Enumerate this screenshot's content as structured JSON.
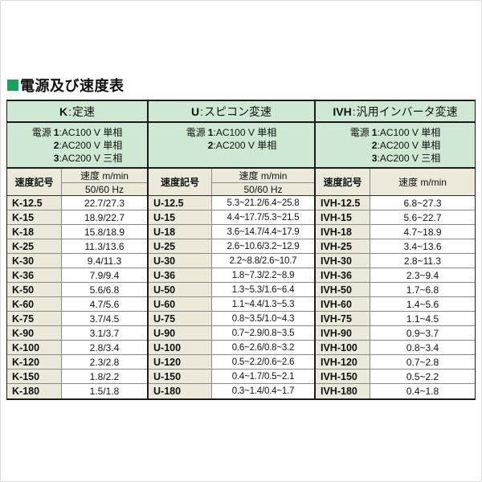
{
  "title": {
    "text": "電源及び速度表"
  },
  "colors": {
    "accent_green": "#12a45a",
    "section_green": "#cee8d4",
    "code_beige": "#ece9da"
  },
  "table": {
    "separator": ":",
    "sections": [
      {
        "id": "K",
        "name_prefix": "K",
        "name_label": "定速",
        "power_label": "電源",
        "power_options": [
          {
            "num": "1",
            "desc": "AC100 V 単相"
          },
          {
            "num": "2",
            "desc": "AC200 V 単相"
          },
          {
            "num": "3",
            "desc": "AC200 V 三相"
          }
        ],
        "code_header": "速度記号",
        "speed_header": "速度 m/min",
        "speed_subheader": "50/60 Hz",
        "rows": [
          {
            "code": "K-12.5",
            "speed": "22.7/27.3"
          },
          {
            "code": "K-15",
            "speed": "18.9/22.7"
          },
          {
            "code": "K-18",
            "speed": "15.8/18.9"
          },
          {
            "code": "K-25",
            "speed": "11.3/13.6"
          },
          {
            "code": "K-30",
            "speed": "9.4/11.3"
          },
          {
            "code": "K-36",
            "speed": "7.9/9.4"
          },
          {
            "code": "K-50",
            "speed": "5.6/6.8"
          },
          {
            "code": "K-60",
            "speed": "4.7/5.6"
          },
          {
            "code": "K-75",
            "speed": "3.7/4.5"
          },
          {
            "code": "K-90",
            "speed": "3.1/3.7"
          },
          {
            "code": "K-100",
            "speed": "2.8/3.4"
          },
          {
            "code": "K-120",
            "speed": "2.3/2.8"
          },
          {
            "code": "K-150",
            "speed": "1.8/2.2"
          },
          {
            "code": "K-180",
            "speed": "1.5/1.8"
          }
        ]
      },
      {
        "id": "U",
        "name_prefix": "U",
        "name_label": "スピコン変速",
        "power_label": "電源",
        "power_options": [
          {
            "num": "1",
            "desc": "AC100 V 単相"
          },
          {
            "num": "2",
            "desc": "AC200 V 単相"
          }
        ],
        "code_header": "速度記号",
        "speed_header": "速度 m/min",
        "speed_subheader": "50/60 Hz",
        "rows": [
          {
            "code": "U-12.5",
            "speed": "5.3~21.2/6.4~25.8"
          },
          {
            "code": "U-15",
            "speed": "4.4~17.7/5.3~21.5"
          },
          {
            "code": "U-18",
            "speed": "3.6~14.7/4.4~17.9"
          },
          {
            "code": "U-25",
            "speed": "2.6~10.6/3.2~12.9"
          },
          {
            "code": "U-30",
            "speed": "2.2~8.8/2.6~10.7"
          },
          {
            "code": "U-36",
            "speed": "1.8~7.3/2.2~8.9"
          },
          {
            "code": "U-50",
            "speed": "1.3~5.3/1.6~6.4"
          },
          {
            "code": "U-60",
            "speed": "1.1~4.4/1.3~5.3"
          },
          {
            "code": "U-75",
            "speed": "0.8~3.5/1.0~4.3"
          },
          {
            "code": "U-90",
            "speed": "0.7~2.9/0.8~3.5"
          },
          {
            "code": "U-100",
            "speed": "0.6~2.6/0.8~3.2"
          },
          {
            "code": "U-120",
            "speed": "0.5~2.2/0.6~2.6"
          },
          {
            "code": "U-150",
            "speed": "0.4~1.7/0.5~2.1"
          },
          {
            "code": "U-180",
            "speed": "0.3~1.4/0.4~1.7"
          }
        ]
      },
      {
        "id": "IVH",
        "name_prefix": "IVH",
        "name_label": "汎用インバータ変速",
        "power_label": "電源",
        "power_options": [
          {
            "num": "1",
            "desc": "AC100 V 単相"
          },
          {
            "num": "2",
            "desc": "AC200 V 単相"
          },
          {
            "num": "3",
            "desc": "AC200 V 三相"
          }
        ],
        "code_header": "速度記号",
        "speed_header": "速度 m/min",
        "speed_subheader": null,
        "rows": [
          {
            "code": "IVH-12.5",
            "speed": "6.8~27.3"
          },
          {
            "code": "IVH-15",
            "speed": "5.6~22.7"
          },
          {
            "code": "IVH-18",
            "speed": "4.7~18.9"
          },
          {
            "code": "IVH-25",
            "speed": "3.4~13.6"
          },
          {
            "code": "IVH-30",
            "speed": "2.8~11.3"
          },
          {
            "code": "IVH-36",
            "speed": "2.3~9.4"
          },
          {
            "code": "IVH-50",
            "speed": "1.7~6.8"
          },
          {
            "code": "IVH-60",
            "speed": "1.4~5.6"
          },
          {
            "code": "IVH-75",
            "speed": "1.1~4.5"
          },
          {
            "code": "IVH-90",
            "speed": "0.9~3.7"
          },
          {
            "code": "IVH-100",
            "speed": "0.8~3.4"
          },
          {
            "code": "IVH-120",
            "speed": "0.7~2.8"
          },
          {
            "code": "IVH-150",
            "speed": "0.5~2.2"
          },
          {
            "code": "IVH-180",
            "speed": "0.4~1.8"
          }
        ]
      }
    ]
  }
}
